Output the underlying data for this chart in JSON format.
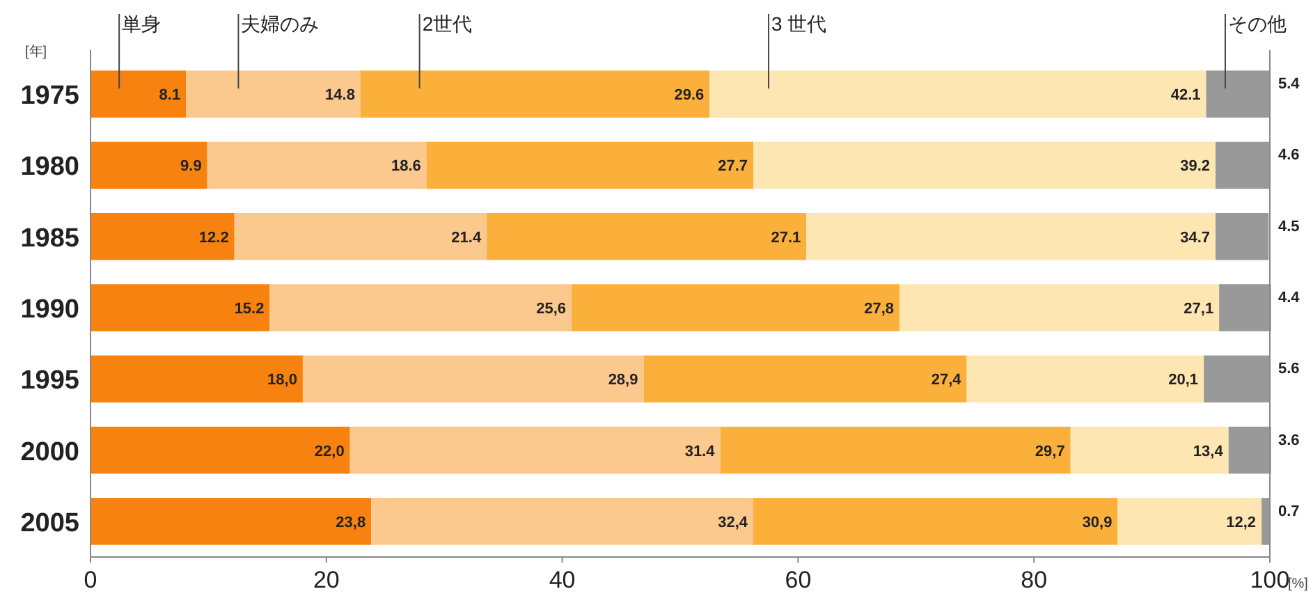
{
  "chart_data": {
    "type": "bar",
    "orientation": "horizontal",
    "stacked": true,
    "ylabel": "[年]",
    "xlabel": "[%]",
    "categories": [
      "1975",
      "1980",
      "1985",
      "1990",
      "1995",
      "2000",
      "2005"
    ],
    "xlim": [
      0,
      100
    ],
    "xticks": [
      0,
      20,
      40,
      60,
      80,
      100
    ],
    "series": [
      {
        "name": "単身",
        "color": "#f7820f",
        "values": [
          8.1,
          9.9,
          12.2,
          15.2,
          18.0,
          22.0,
          23.8
        ],
        "value_labels": [
          "8.1",
          "9.9",
          "12.2",
          "15.2",
          "18,0",
          "22,0",
          "23,8"
        ]
      },
      {
        "name": "夫婦のみ",
        "color": "#fbc88e",
        "values": [
          14.8,
          18.6,
          21.4,
          25.6,
          28.9,
          31.4,
          32.4
        ],
        "value_labels": [
          "14.8",
          "18.6",
          "21.4",
          "25,6",
          "28,9",
          "31.4",
          "32,4"
        ]
      },
      {
        "name": "2世代",
        "color": "#fbb03b",
        "values": [
          29.6,
          27.7,
          27.1,
          27.8,
          27.4,
          29.7,
          30.9
        ],
        "value_labels": [
          "29.6",
          "27.7",
          "27.1",
          "27,8",
          "27,4",
          "29,7",
          "30,9"
        ]
      },
      {
        "name": "3 世代",
        "color": "#fde6b2",
        "values": [
          42.1,
          39.2,
          34.7,
          27.1,
          20.1,
          13.4,
          12.2
        ],
        "value_labels": [
          "42.1",
          "39.2",
          "34.7",
          "27,1",
          "20,1",
          "13,4",
          "12,2"
        ]
      },
      {
        "name": "その他",
        "color": "#999999",
        "values": [
          5.4,
          4.6,
          4.5,
          4.4,
          5.6,
          3.6,
          0.7
        ],
        "value_labels": [
          "5.4",
          "4.6",
          "4.5",
          "4.4",
          "5.6",
          "3.6",
          "0.7"
        ]
      }
    ]
  }
}
